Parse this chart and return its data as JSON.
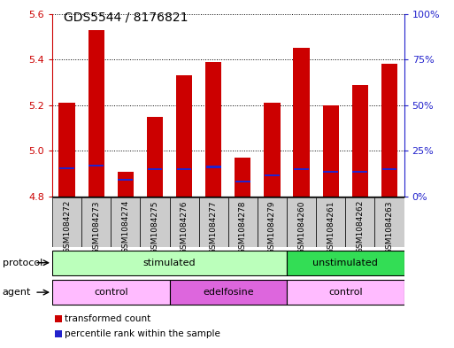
{
  "title": "GDS5544 / 8176821",
  "samples": [
    "GSM1084272",
    "GSM1084273",
    "GSM1084274",
    "GSM1084275",
    "GSM1084276",
    "GSM1084277",
    "GSM1084278",
    "GSM1084279",
    "GSM1084260",
    "GSM1084261",
    "GSM1084262",
    "GSM1084263"
  ],
  "bar_heights": [
    5.21,
    5.53,
    4.91,
    5.15,
    5.33,
    5.39,
    4.97,
    5.21,
    5.45,
    5.2,
    5.29,
    5.38
  ],
  "blue_positions": [
    4.925,
    4.935,
    4.875,
    4.92,
    4.92,
    4.93,
    4.865,
    4.895,
    4.92,
    4.91,
    4.91,
    4.92
  ],
  "bar_bottom": 4.8,
  "ymin": 4.8,
  "ymax": 5.6,
  "yticks": [
    4.8,
    5.0,
    5.2,
    5.4,
    5.6
  ],
  "right_ytick_pcts": [
    0,
    25,
    50,
    75,
    100
  ],
  "right_ytick_labels": [
    "0%",
    "25%",
    "50%",
    "75%",
    "100%"
  ],
  "bar_color": "#cc0000",
  "blue_color": "#2222cc",
  "bar_width": 0.55,
  "protocol_groups": [
    {
      "label": "stimulated",
      "start": 0,
      "end": 8,
      "color": "#bbffbb"
    },
    {
      "label": "unstimulated",
      "start": 8,
      "end": 12,
      "color": "#33dd55"
    }
  ],
  "agent_groups": [
    {
      "label": "control",
      "start": 0,
      "end": 4,
      "color": "#ffbbff"
    },
    {
      "label": "edelfosine",
      "start": 4,
      "end": 8,
      "color": "#dd66dd"
    },
    {
      "label": "control",
      "start": 8,
      "end": 12,
      "color": "#ffbbff"
    }
  ],
  "legend_items": [
    {
      "label": "transformed count",
      "color": "#cc0000"
    },
    {
      "label": "percentile rank within the sample",
      "color": "#2222cc"
    }
  ],
  "bg_color": "#ffffff",
  "tick_color_left": "#cc0000",
  "tick_color_right": "#2222cc",
  "sample_bg_color": "#cccccc",
  "title_fontsize": 10,
  "sample_fontsize": 6.5,
  "row_fontsize": 8,
  "legend_fontsize": 7.5
}
